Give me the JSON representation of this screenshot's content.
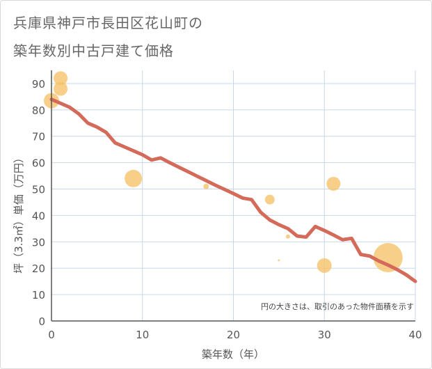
{
  "title": {
    "line1": "兵庫県神戸市長田区花山町の",
    "line2": "築年数別中古戸建て価格"
  },
  "chart_data": {
    "type": "scatter",
    "title": "兵庫県神戸市長田区花山町の築年数別中古戸建て価格",
    "xlabel": "築年数（年）",
    "ylabel": "坪（3.3㎡）単価（万円）",
    "xlim": [
      0,
      40
    ],
    "ylim": [
      0,
      95
    ],
    "xticks": [
      "0",
      "10",
      "20",
      "30",
      "40"
    ],
    "yticks": [
      "0",
      "10",
      "20",
      "30",
      "40",
      "50",
      "60",
      "70",
      "80",
      "90"
    ],
    "grid": true,
    "annotation": "円の大きさは、取引のあった物件面積を示す",
    "colors": {
      "bubble": "#f5c36b",
      "trend": "#d46b5a",
      "grid": "#c8d7e8",
      "axis": "#555555"
    },
    "bubbles": [
      {
        "x": 0,
        "y": 83.5,
        "size": 11
      },
      {
        "x": 1,
        "y": 92,
        "size": 10
      },
      {
        "x": 1,
        "y": 88,
        "size": 10
      },
      {
        "x": 9,
        "y": 54,
        "size": 12.5
      },
      {
        "x": 17,
        "y": 51,
        "size": 4
      },
      {
        "x": 24,
        "y": 46,
        "size": 7
      },
      {
        "x": 25,
        "y": 23,
        "size": 1.5
      },
      {
        "x": 26,
        "y": 32,
        "size": 3
      },
      {
        "x": 30,
        "y": 21,
        "size": 10.5
      },
      {
        "x": 31,
        "y": 52,
        "size": 10
      },
      {
        "x": 37,
        "y": 24,
        "size": 21
      }
    ],
    "trend": {
      "name": "trend",
      "x": [
        0,
        1,
        2,
        3,
        4,
        5,
        6,
        7,
        8,
        9,
        10,
        11,
        12,
        13,
        14,
        15,
        16,
        17,
        18,
        19,
        20,
        21,
        22,
        23,
        24,
        25,
        26,
        27,
        28,
        29,
        30,
        31,
        32,
        33,
        34,
        35,
        36,
        37,
        38,
        39,
        40
      ],
      "y": [
        84,
        82.5,
        81,
        78.5,
        75,
        73.5,
        71.5,
        67.5,
        66,
        64.5,
        63,
        61,
        61.8,
        60,
        58.3,
        56.6,
        54.9,
        53.2,
        51.5,
        49.9,
        48.3,
        46.6,
        46,
        41.2,
        38.3,
        36.5,
        35,
        32.2,
        31.8,
        35.8,
        34.3,
        32.6,
        30.8,
        31.3,
        25.2,
        24.6,
        22.7,
        21.2,
        19.5,
        17.5,
        15
      ]
    }
  }
}
